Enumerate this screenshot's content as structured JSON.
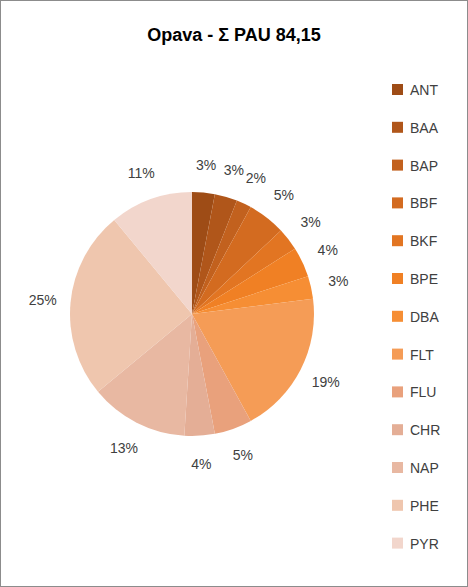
{
  "chart_data": {
    "type": "pie",
    "title": "Opava  - Σ PAU 84,15",
    "categories": [
      "ANT",
      "BAA",
      "BAP",
      "BBF",
      "BKF",
      "BPE",
      "DBA",
      "FLT",
      "FLU",
      "CHR",
      "NAP",
      "PHE",
      "PYR"
    ],
    "values": [
      3,
      3,
      2,
      5,
      3,
      4,
      3,
      19,
      5,
      4,
      13,
      25,
      11
    ],
    "value_labels": [
      "3%",
      "3%",
      "2%",
      "5%",
      "3%",
      "4%",
      "3%",
      "19%",
      "5%",
      "4%",
      "13%",
      "25%",
      "11%"
    ],
    "colors": [
      "#9e4c16",
      "#b0561a",
      "#c2611e",
      "#d36b20",
      "#e27522",
      "#f08024",
      "#f68e34",
      "#f59c56",
      "#e9a17c",
      "#e4ae96",
      "#e8b8a2",
      "#efc6ae",
      "#f2d6cc"
    ],
    "data_labels": true,
    "legend": "right"
  }
}
